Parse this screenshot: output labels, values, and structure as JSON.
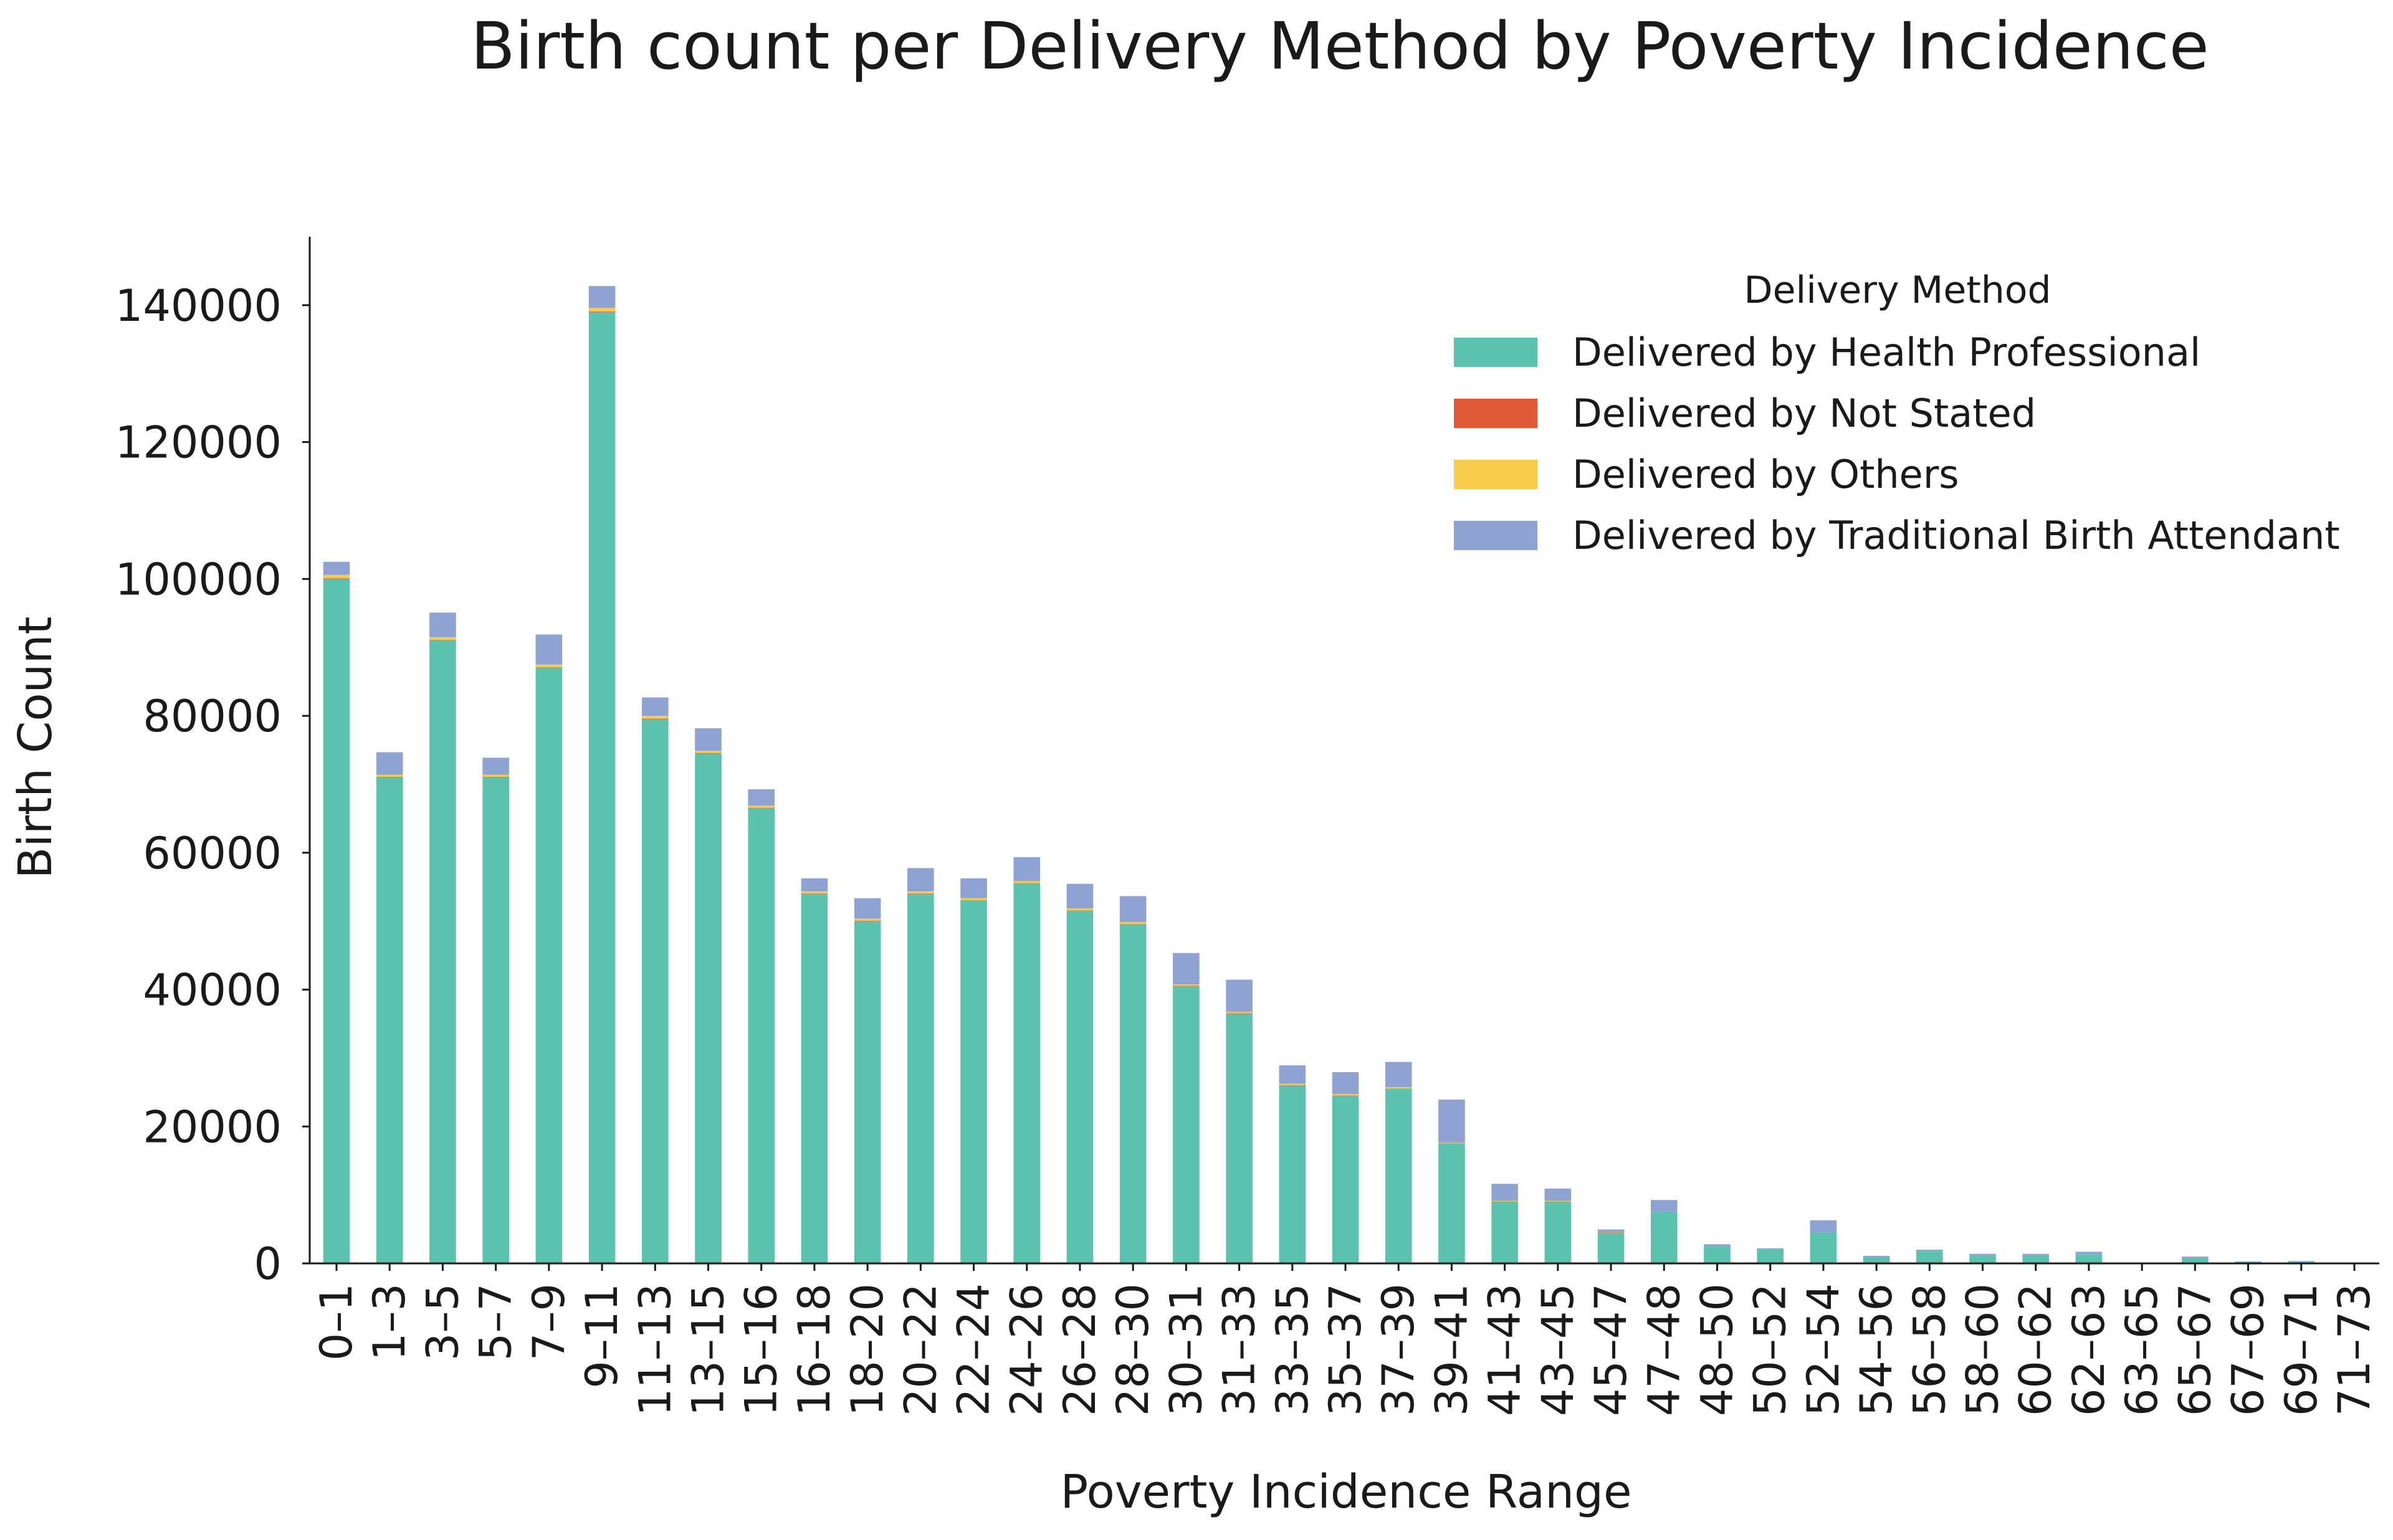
{
  "chart_data": {
    "type": "bar",
    "stacked": true,
    "title": "Birth count per Delivery Method by Poverty Incidence",
    "xlabel": "Poverty Incidence Range",
    "ylabel": "Birth Count",
    "ylim": [
      0,
      150000
    ],
    "yticks": [
      0,
      20000,
      40000,
      60000,
      80000,
      100000,
      120000,
      140000
    ],
    "ytick_labels": [
      "0",
      "20000",
      "40000",
      "60000",
      "80000",
      "100000",
      "120000",
      "140000"
    ],
    "grid": false,
    "legend": {
      "title": "Delivery Method",
      "placement": "top-right"
    },
    "categories": [
      "0–1",
      "1–3",
      "3–5",
      "5–7",
      "7–9",
      "9–11",
      "11–13",
      "13–15",
      "15–16",
      "16–18",
      "18–20",
      "20–22",
      "22–24",
      "24–26",
      "26–28",
      "28–30",
      "30–31",
      "31–33",
      "33–35",
      "35–37",
      "37–39",
      "39–41",
      "41–43",
      "43–45",
      "45–47",
      "47–48",
      "48–50",
      "50–52",
      "52–54",
      "54–56",
      "56–58",
      "58–60",
      "60–62",
      "62–63",
      "63–65",
      "65–67",
      "67–69",
      "69–71",
      "71–73"
    ],
    "series": [
      {
        "name": "Delivered by Health Professional",
        "color": "#5bc3ad",
        "values": [
          100000,
          71000,
          91000,
          71000,
          87000,
          139000,
          79500,
          74500,
          66500,
          54000,
          50000,
          54000,
          53000,
          55500,
          51500,
          49500,
          40500,
          36500,
          26000,
          24500,
          25500,
          17500,
          9000,
          9000,
          4500,
          7500,
          2500,
          2000,
          4500,
          900,
          1800,
          1100,
          1200,
          1300,
          0,
          800,
          200,
          250,
          0
        ]
      },
      {
        "name": "Delivered by Not Stated",
        "color": "#e05a37",
        "values": [
          100,
          80,
          90,
          80,
          90,
          100,
          90,
          80,
          70,
          60,
          60,
          60,
          60,
          60,
          60,
          60,
          50,
          50,
          40,
          40,
          40,
          30,
          20,
          20,
          10,
          10,
          0,
          0,
          0,
          0,
          0,
          0,
          0,
          0,
          0,
          0,
          0,
          0,
          0
        ]
      },
      {
        "name": "Delivered by Others",
        "color": "#f7cd4b",
        "values": [
          500,
          300,
          400,
          300,
          400,
          500,
          400,
          300,
          300,
          300,
          300,
          300,
          300,
          300,
          300,
          300,
          200,
          200,
          200,
          200,
          200,
          100,
          100,
          100,
          50,
          50,
          0,
          0,
          0,
          0,
          0,
          0,
          0,
          0,
          0,
          0,
          0,
          0,
          0
        ]
      },
      {
        "name": "Delivered by Traditional Birth Attendant",
        "color": "#8fa3d3",
        "values": [
          1900,
          3300,
          3600,
          2500,
          4400,
          3200,
          2700,
          3300,
          2400,
          1900,
          3000,
          3400,
          2900,
          3500,
          3600,
          3800,
          4600,
          4700,
          2700,
          3200,
          3700,
          6300,
          2500,
          1800,
          400,
          1700,
          300,
          200,
          1800,
          200,
          200,
          300,
          200,
          400,
          0,
          200,
          100,
          100,
          0
        ]
      }
    ]
  }
}
